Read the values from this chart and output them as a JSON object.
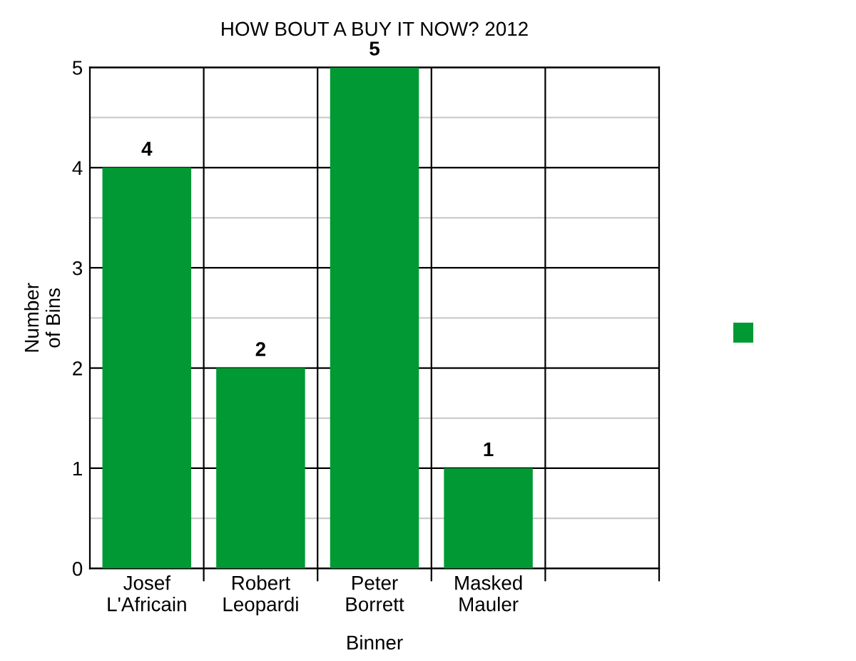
{
  "chart_data": {
    "type": "bar",
    "title": "HOW BOUT A BUY IT NOW? 2012",
    "xlabel": "Binner",
    "ylabel": "Number\nof Bins",
    "categories": [
      "Josef\nL'Africain",
      "Robert\nLeopardi",
      "Peter\nBorrett",
      "Masked\nMauler",
      null
    ],
    "series": [
      {
        "color": "#009933",
        "values": [
          4,
          2,
          5,
          1,
          null
        ]
      }
    ],
    "ylim": [
      0,
      5
    ],
    "yticks": [
      0,
      {
        "value": 0.5,
        "label": null
      },
      1,
      {
        "value": 1.5,
        "label": null
      },
      2,
      {
        "value": 2.5,
        "label": null
      },
      3,
      {
        "value": 3.5,
        "label": null
      },
      4,
      {
        "value": 4.5,
        "label": null
      },
      5
    ],
    "grid": true,
    "data_labels": true
  }
}
